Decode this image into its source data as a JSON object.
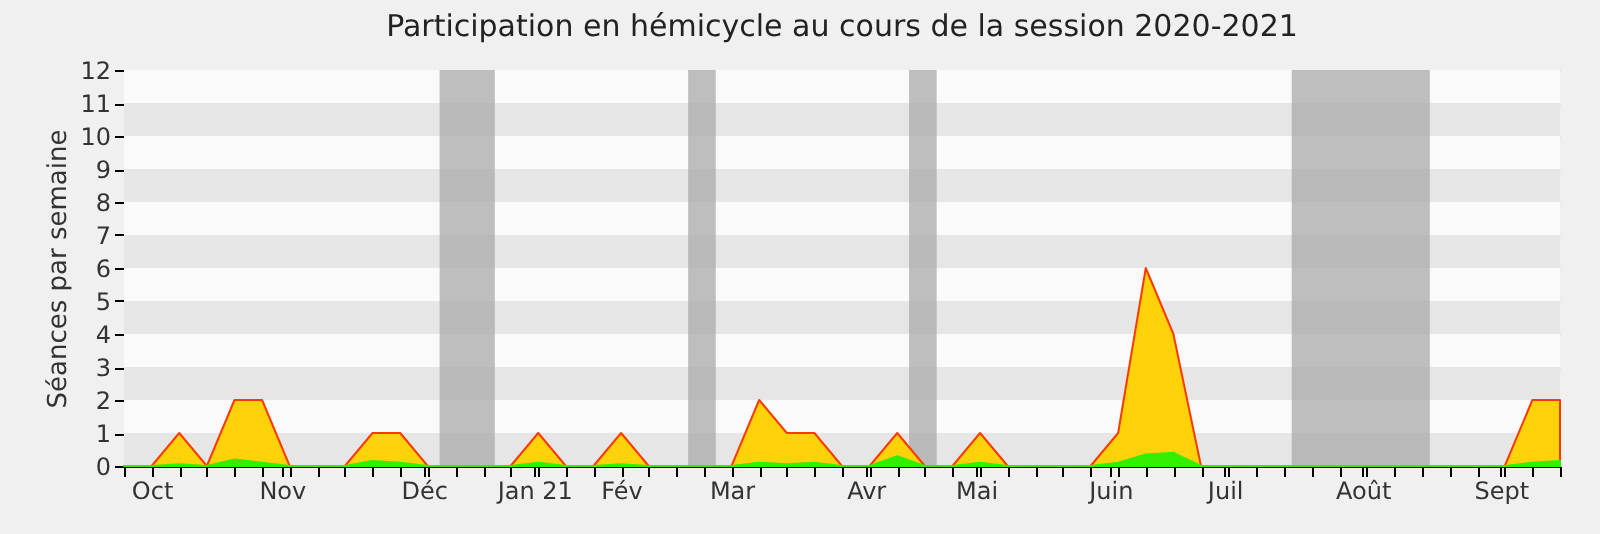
{
  "chart_data": {
    "type": "area",
    "title": "Participation en hémicycle au cours de la session 2020-2021",
    "ylabel": "Séances par semaine",
    "x": [
      "2020-09-28",
      "2020-10-05",
      "2020-10-12",
      "2020-10-19",
      "2020-10-26",
      "2020-11-02",
      "2020-11-09",
      "2020-11-16",
      "2020-11-23",
      "2020-11-30",
      "2020-12-07",
      "2020-12-14",
      "2020-12-21",
      "2020-12-28",
      "2021-01-04",
      "2021-01-11",
      "2021-01-18",
      "2021-01-25",
      "2021-02-01",
      "2021-02-08",
      "2021-02-15",
      "2021-02-22",
      "2021-03-01",
      "2021-03-08",
      "2021-03-15",
      "2021-03-22",
      "2021-03-29",
      "2021-04-05",
      "2021-04-12",
      "2021-04-19",
      "2021-04-26",
      "2021-05-03",
      "2021-05-10",
      "2021-05-17",
      "2021-05-24",
      "2021-05-31",
      "2021-06-07",
      "2021-06-14",
      "2021-06-21",
      "2021-06-28",
      "2021-07-05",
      "2021-07-12",
      "2021-07-19",
      "2021-07-26",
      "2021-08-02",
      "2021-08-09",
      "2021-08-16",
      "2021-08-23",
      "2021-08-30",
      "2021-09-06",
      "2021-09-13",
      "2021-09-20",
      "2021-09-27"
    ],
    "series": [
      {
        "color": "#ffd20a",
        "values": [
          0,
          0,
          1,
          0,
          2,
          2,
          0,
          0,
          0,
          1,
          1,
          0,
          0,
          0,
          0,
          1,
          0,
          0,
          1,
          0,
          0,
          0,
          0,
          2,
          1,
          1,
          0,
          0,
          1,
          0,
          0,
          1,
          0,
          0,
          0,
          0,
          1,
          6,
          4,
          0,
          0,
          0,
          0,
          0,
          0,
          0,
          0,
          0,
          0,
          0,
          0,
          2,
          2
        ]
      },
      {
        "color": "#33ee00",
        "values": [
          0,
          0,
          0.05,
          0,
          0.2,
          0.1,
          0,
          0,
          0,
          0.15,
          0.1,
          0,
          0,
          0,
          0,
          0.1,
          0,
          0,
          0.05,
          0,
          0,
          0,
          0,
          0.1,
          0.05,
          0.1,
          0,
          0,
          0.3,
          0,
          0,
          0.1,
          0,
          0,
          0,
          0,
          0.1,
          0.35,
          0.4,
          0,
          0,
          0,
          0,
          0,
          0,
          0,
          0,
          0,
          0,
          0,
          0,
          0.1,
          0.15
        ]
      }
    ],
    "xlim": [
      "2020-09-28",
      "2021-09-27"
    ],
    "xticks": [
      {
        "value": "2020-09-28",
        "label": null
      },
      {
        "value": "2020-10-05",
        "label": "Oct"
      },
      {
        "value": "2020-10-12",
        "label": null
      },
      {
        "value": "2020-10-19",
        "label": null
      },
      {
        "value": "2020-10-26",
        "label": null
      },
      {
        "value": "2020-11-02",
        "label": null
      },
      {
        "value": "2020-11-07",
        "label": "Nov"
      },
      {
        "value": "2020-11-09",
        "label": null
      },
      {
        "value": "2020-11-16",
        "label": null
      },
      {
        "value": "2020-11-23",
        "label": null
      },
      {
        "value": "2020-11-30",
        "label": null
      },
      {
        "value": "2020-12-07",
        "label": null
      },
      {
        "value": "2020-12-13",
        "label": "Déc"
      },
      {
        "value": "2020-12-14",
        "label": null
      },
      {
        "value": "2020-12-21",
        "label": null
      },
      {
        "value": "2020-12-28",
        "label": null
      },
      {
        "value": "2021-01-04",
        "label": null
      },
      {
        "value": "2021-01-10",
        "label": "Jan 21"
      },
      {
        "value": "2021-01-11",
        "label": null
      },
      {
        "value": "2021-01-18",
        "label": null
      },
      {
        "value": "2021-01-25",
        "label": null
      },
      {
        "value": "2021-02-01",
        "label": "Fév"
      },
      {
        "value": "2021-02-08",
        "label": null
      },
      {
        "value": "2021-02-15",
        "label": null
      },
      {
        "value": "2021-02-22",
        "label": null
      },
      {
        "value": "2021-03-01",
        "label": "Mar"
      },
      {
        "value": "2021-03-08",
        "label": null
      },
      {
        "value": "2021-03-15",
        "label": null
      },
      {
        "value": "2021-03-22",
        "label": null
      },
      {
        "value": "2021-03-29",
        "label": null
      },
      {
        "value": "2021-04-04",
        "label": "Avr"
      },
      {
        "value": "2021-04-05",
        "label": null
      },
      {
        "value": "2021-04-12",
        "label": null
      },
      {
        "value": "2021-04-19",
        "label": null
      },
      {
        "value": "2021-04-26",
        "label": null
      },
      {
        "value": "2021-05-02",
        "label": "Mai"
      },
      {
        "value": "2021-05-03",
        "label": null
      },
      {
        "value": "2021-05-10",
        "label": null
      },
      {
        "value": "2021-05-17",
        "label": null
      },
      {
        "value": "2021-05-24",
        "label": null
      },
      {
        "value": "2021-05-31",
        "label": null
      },
      {
        "value": "2021-06-05",
        "label": "Juin"
      },
      {
        "value": "2021-06-07",
        "label": null
      },
      {
        "value": "2021-06-14",
        "label": null
      },
      {
        "value": "2021-06-21",
        "label": null
      },
      {
        "value": "2021-06-28",
        "label": null
      },
      {
        "value": "2021-07-04",
        "label": "Juil"
      },
      {
        "value": "2021-07-05",
        "label": null
      },
      {
        "value": "2021-07-12",
        "label": null
      },
      {
        "value": "2021-07-19",
        "label": null
      },
      {
        "value": "2021-07-26",
        "label": null
      },
      {
        "value": "2021-08-02",
        "label": null
      },
      {
        "value": "2021-08-08",
        "label": "Août"
      },
      {
        "value": "2021-08-09",
        "label": null
      },
      {
        "value": "2021-08-16",
        "label": null
      },
      {
        "value": "2021-08-23",
        "label": null
      },
      {
        "value": "2021-08-30",
        "label": null
      },
      {
        "value": "2021-09-06",
        "label": null
      },
      {
        "value": "2021-09-12",
        "label": "Sept"
      },
      {
        "value": "2021-09-13",
        "label": null
      },
      {
        "value": "2021-09-20",
        "label": null
      },
      {
        "value": "2021-09-27",
        "label": null
      }
    ],
    "ylim": [
      0,
      12
    ],
    "yticks": [
      0,
      1,
      2,
      3,
      4,
      5,
      6,
      7,
      8,
      9,
      10,
      11,
      12
    ],
    "grid": "y",
    "bands": [
      {
        "axis": "x",
        "from": "2020-12-17",
        "to": "2020-12-31",
        "color": "#aaaaaa"
      },
      {
        "axis": "x",
        "from": "2021-02-18",
        "to": "2021-02-25",
        "color": "#aaaaaa"
      },
      {
        "axis": "x",
        "from": "2021-04-15",
        "to": "2021-04-22",
        "color": "#aaaaaa"
      },
      {
        "axis": "x",
        "from": "2021-07-21",
        "to": "2021-08-25",
        "color": "#aaaaaa"
      }
    ]
  }
}
